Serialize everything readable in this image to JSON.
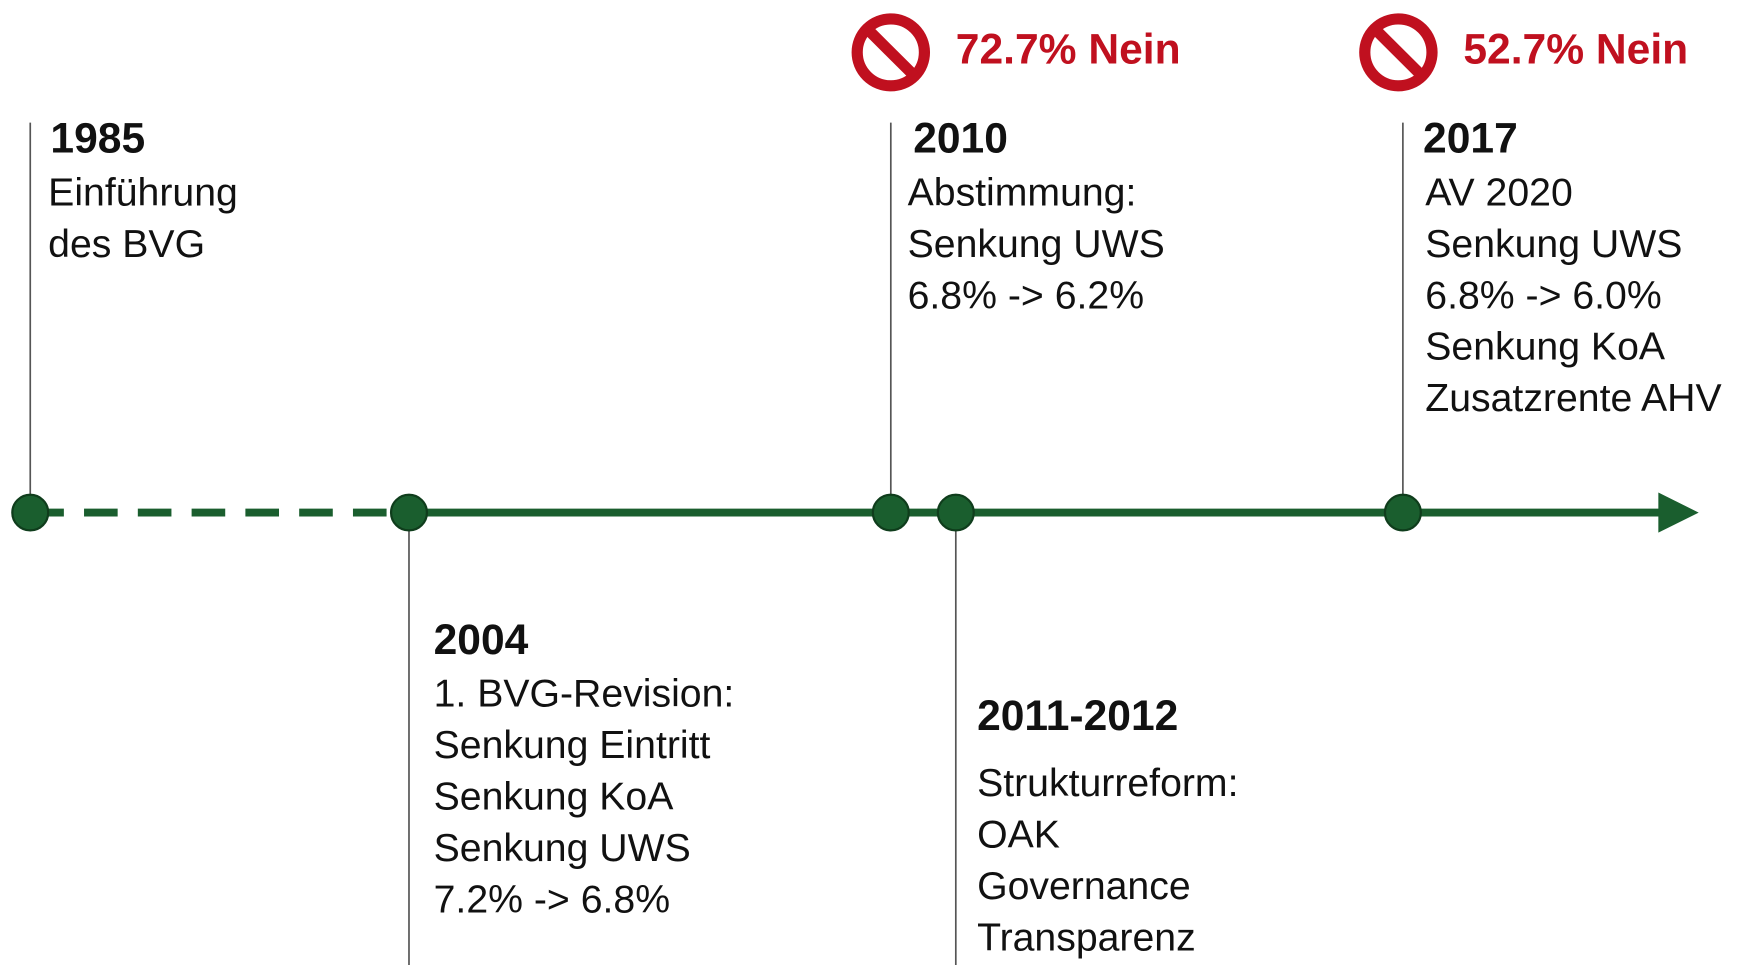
{
  "events": [
    {
      "year": "1985",
      "lines": [
        "Einführung",
        "des BVG"
      ]
    },
    {
      "year": "2004",
      "lines": [
        "1. BVG-Revision:",
        "Senkung Eintritt",
        "Senkung KoA",
        "Senkung UWS",
        "7.2% -> 6.8%"
      ]
    },
    {
      "year": "2010",
      "lines": [
        "Abstimmung:",
        "Senkung UWS",
        "6.8% -> 6.2%"
      ],
      "vote": "72.7% Nein"
    },
    {
      "year": "2011-2012",
      "lines": [
        "Strukturreform:",
        "OAK",
        "Governance",
        "Transparenz"
      ]
    },
    {
      "year": "2017",
      "lines": [
        "AV 2020",
        "Senkung UWS",
        "6.8% -> 6.0%",
        "Senkung KoA",
        "Zusatzrente AHV"
      ],
      "vote": "52.7% Nein"
    }
  ]
}
